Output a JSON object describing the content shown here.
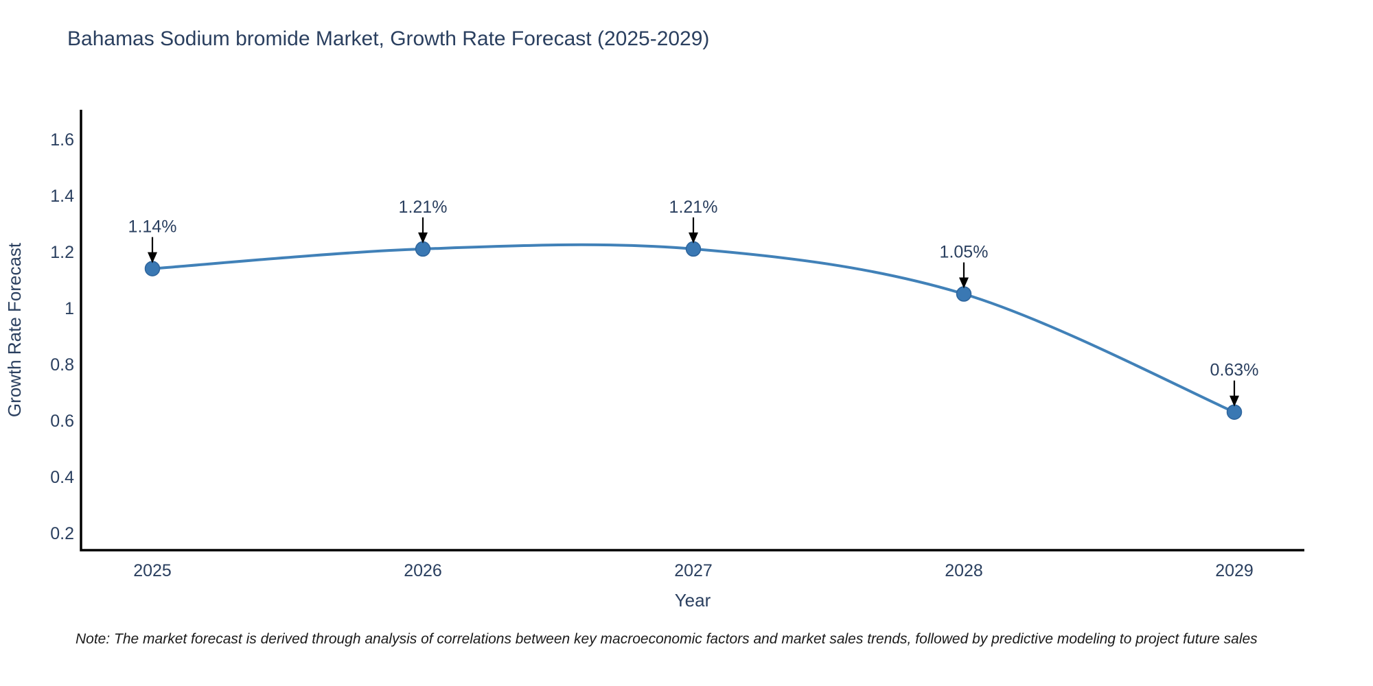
{
  "title": "Bahamas Sodium bromide Market, Growth Rate Forecast (2025-2029)",
  "note": "Note: The market forecast is derived through analysis of correlations between key macroeconomic factors and market sales trends, followed by predictive modeling to project future sales",
  "chart_data": {
    "type": "line",
    "title": "Bahamas Sodium bromide Market, Growth Rate Forecast (2025-2029)",
    "xlabel": "Year",
    "ylabel": "Growth Rate Forecast",
    "x": [
      2025,
      2026,
      2027,
      2028,
      2029
    ],
    "xtick_labels": [
      "2025",
      "2026",
      "2027",
      "2028",
      "2029"
    ],
    "series": [
      {
        "name": "Growth Rate Forecast",
        "values": [
          1.14,
          1.21,
          1.21,
          1.05,
          0.63
        ]
      }
    ],
    "point_labels": [
      "1.14%",
      "1.21%",
      "1.21%",
      "1.05%",
      "0.63%"
    ],
    "yticks": [
      1.6,
      1.4,
      1.2,
      1.0,
      0.8,
      0.6,
      0.4,
      0.2
    ],
    "ytick_labels": [
      "1.6",
      "1.4",
      "1.2",
      "1",
      "0.8",
      "0.6",
      "0.4",
      "0.2"
    ],
    "ylim": [
      0.14,
      1.71
    ],
    "grid": false,
    "legend": "none",
    "line_shape": "spline",
    "annotation_style": "value-label-with-down-arrow",
    "colors": {
      "line": "#4181b8",
      "marker": "#3a78b3",
      "marker_edge": "#2d649c",
      "arrow": "#000000",
      "axis": "#000000",
      "text": "#2a3f5f",
      "note_text": "#1a1a1a"
    }
  }
}
